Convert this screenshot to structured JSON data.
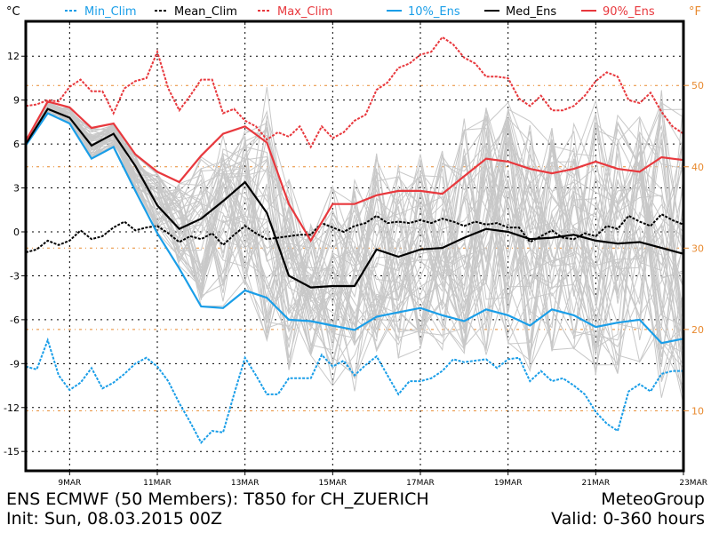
{
  "chart_data": {
    "type": "line",
    "title": "ENS ECMWF (50 Members): T850 for CH_ZUERICH",
    "subtitle": "Init: Sun, 08.03.2015 00Z",
    "provider": "MeteoGroup",
    "valid": "Valid: 0-360 hours",
    "ylabel_left": "°C",
    "ylabel_right": "°F",
    "ylim": [
      -16.5,
      14.5
    ],
    "xlim_hours": [
      0,
      360
    ],
    "yticks_left": [
      12,
      9,
      6,
      3,
      0,
      -3,
      -6,
      -9,
      -12,
      -15
    ],
    "ytick_labels_left": [
      "12",
      "9",
      "6",
      "3",
      "0",
      "-3",
      "-6",
      "-9",
      "-12",
      "-15"
    ],
    "yticks_right_f": [
      50,
      40,
      30,
      20,
      10
    ],
    "ytick_labels_right": [
      "50",
      "40",
      "30",
      "20",
      "10"
    ],
    "xticks_hours": [
      24,
      72,
      120,
      168,
      216,
      264,
      312,
      360
    ],
    "xtick_labels": [
      "9MAR",
      "11MAR",
      "13MAR",
      "15MAR",
      "17MAR",
      "19MAR",
      "21MAR",
      "23MAR"
    ],
    "grid": true,
    "legend_position": "top",
    "colors": {
      "min": "#1a9ee8",
      "mean": "#000000",
      "max": "#e8383d",
      "members": "#c8c8c8",
      "fgrid": "#e8892e",
      "frame": "#000000"
    },
    "legend": [
      {
        "label": "Min_Clim",
        "style": "dashed",
        "color": "#1a9ee8"
      },
      {
        "label": "Mean_Clim",
        "style": "dashed",
        "color": "#000000"
      },
      {
        "label": "Max_Clim",
        "style": "dashed",
        "color": "#e8383d"
      },
      {
        "label": "10%_Ens",
        "style": "solid",
        "color": "#1a9ee8"
      },
      {
        "label": "Med_Ens",
        "style": "solid",
        "color": "#000000"
      },
      {
        "label": "90%_Ens",
        "style": "solid",
        "color": "#e8383d"
      }
    ],
    "ens_step_hours": 12,
    "series": [
      {
        "name": "10%_Ens",
        "style": "solid",
        "color": "#1a9ee8",
        "values": [
          5.9,
          8.1,
          7.4,
          5.0,
          5.8,
          2.8,
          -0.1,
          -2.5,
          -5.1,
          -5.2,
          -4.0,
          -4.5,
          -6.0,
          -6.1,
          -6.4,
          -6.7,
          -5.8,
          -5.5,
          -5.2,
          -5.7,
          -6.1,
          -5.3,
          -5.7,
          -6.4,
          -5.3,
          -5.7,
          -6.5,
          -6.2,
          -6.0,
          -7.6,
          -7.3
        ]
      },
      {
        "name": "Med_Ens",
        "style": "solid",
        "color": "#000000",
        "values": [
          6.0,
          8.4,
          7.8,
          5.9,
          6.7,
          4.5,
          1.8,
          0.2,
          0.9,
          2.1,
          3.4,
          1.3,
          -3.0,
          -3.8,
          -3.7,
          -3.7,
          -1.2,
          -1.7,
          -1.2,
          -1.1,
          -0.4,
          0.2,
          0.0,
          -0.5,
          -0.4,
          -0.2,
          -0.6,
          -0.8,
          -0.7,
          -1.1,
          -1.5
        ]
      },
      {
        "name": "90%_Ens",
        "style": "solid",
        "color": "#e8383d",
        "values": [
          6.2,
          8.9,
          8.5,
          7.1,
          7.4,
          5.3,
          4.1,
          3.4,
          5.2,
          6.7,
          7.2,
          6.1,
          1.9,
          -0.6,
          1.9,
          1.9,
          2.5,
          2.8,
          2.8,
          2.6,
          3.8,
          5.0,
          4.8,
          4.3,
          4.0,
          4.3,
          4.8,
          4.3,
          4.1,
          5.1,
          4.9
        ]
      },
      {
        "name": "Min_Clim",
        "style": "dashed",
        "color": "#1a9ee8",
        "values": [
          -9.2,
          -9.4,
          -7.4,
          -9.8,
          -10.8,
          -10.3,
          -9.3,
          -10.7,
          -10.3,
          -9.7,
          -9.0,
          -8.6,
          -9.2,
          -10.2,
          -11.7,
          -13.0,
          -14.4,
          -13.6,
          -13.7,
          -11.1,
          -8.6,
          -9.8,
          -11.1,
          -11.1,
          -10.0,
          -10.0,
          -10.0,
          -8.4,
          -9.2,
          -8.8,
          -9.8,
          -9.1,
          -8.5,
          -9.8,
          -11.1,
          -10.2,
          -10.2,
          -10.0,
          -9.5,
          -8.7,
          -8.9,
          -8.8,
          -8.7,
          -9.3,
          -8.7,
          -8.6,
          -10.2,
          -9.5,
          -10.2,
          -10.0,
          -10.5,
          -11.1,
          -12.3,
          -13.1,
          -13.6,
          -10.9,
          -10.4,
          -10.9,
          -9.7,
          -9.5,
          -9.5
        ]
      },
      {
        "name": "Mean_Clim",
        "style": "dashed",
        "color": "#000000",
        "values": [
          -1.4,
          -1.2,
          -0.6,
          -0.9,
          -0.6,
          0.1,
          -0.5,
          -0.3,
          0.3,
          0.7,
          0.1,
          0.3,
          0.4,
          -0.1,
          -0.7,
          -0.3,
          -0.5,
          -0.1,
          -0.9,
          -0.2,
          0.4,
          -0.1,
          -0.5,
          -0.4,
          -0.3,
          -0.2,
          -0.2,
          0.6,
          0.3,
          0.0,
          0.4,
          0.6,
          1.1,
          0.6,
          0.7,
          0.6,
          0.8,
          0.6,
          0.9,
          0.7,
          0.4,
          0.7,
          0.5,
          0.6,
          0.3,
          0.3,
          -0.7,
          -0.3,
          0.1,
          -0.4,
          -0.5,
          -0.1,
          -0.3,
          0.4,
          0.2,
          1.1,
          0.7,
          0.4,
          1.2,
          0.8,
          0.5
        ]
      },
      {
        "name": "Max_Clim",
        "style": "dashed",
        "color": "#e8383d",
        "values": [
          8.6,
          8.7,
          9.0,
          8.9,
          9.9,
          10.4,
          9.6,
          9.6,
          8.1,
          9.8,
          10.3,
          10.5,
          12.3,
          9.8,
          8.3,
          9.3,
          10.4,
          10.4,
          8.1,
          8.4,
          7.6,
          7.2,
          6.3,
          6.8,
          6.5,
          7.2,
          5.8,
          7.2,
          6.4,
          6.8,
          7.6,
          8.0,
          9.7,
          10.2,
          11.2,
          11.5,
          12.1,
          12.3,
          13.3,
          12.8,
          11.9,
          11.5,
          10.6,
          10.6,
          10.5,
          9.1,
          8.6,
          9.3,
          8.3,
          8.3,
          8.6,
          9.3,
          10.3,
          10.9,
          10.6,
          9.0,
          8.8,
          9.5,
          8.2,
          7.2,
          6.7
        ]
      }
    ],
    "members_note": "50 ensemble member traces"
  }
}
